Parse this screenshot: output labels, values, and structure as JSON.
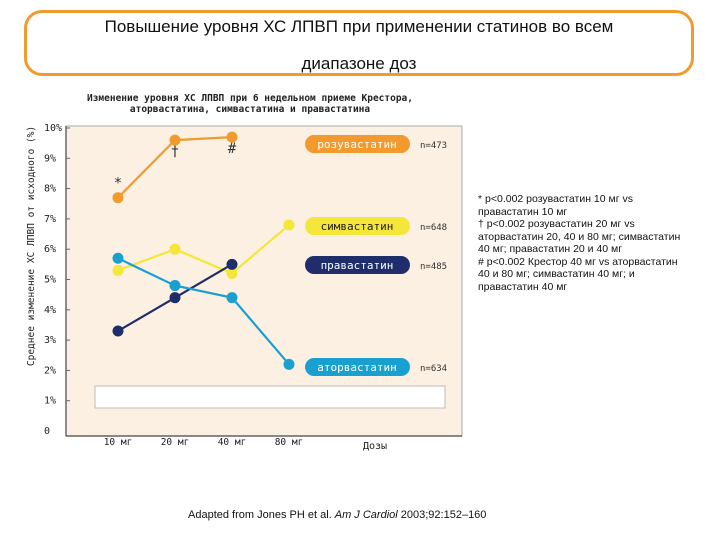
{
  "slide_title": {
    "line1": "Повышение уровня ХС ЛПВП при применении статинов во всем",
    "line2": "диапазоне доз"
  },
  "chart_data": {
    "type": "line",
    "title_line1": "Изменение уровня ХС ЛПВП при 6 недельном приеме Крестора,",
    "title_line2": "аторвастатина, симвастатина и правастатина",
    "ylabel": "Среднее изменение ХС ЛПВП от исходного (%)",
    "xlabel": "Дозы",
    "categories": [
      "10 мг",
      "20 мг",
      "40 мг",
      "80 мг"
    ],
    "y_ticks": [
      "0",
      "1%",
      "2%",
      "3%",
      "4%",
      "5%",
      "6%",
      "7%",
      "8%",
      "9%",
      "10%"
    ],
    "ylim": [
      0,
      10
    ],
    "grid": false,
    "series": [
      {
        "name": "розувастатин",
        "n": "n=473",
        "color": "#f29a2e",
        "label_bg": "#f29a2e",
        "label_fg": "#ffffff",
        "values": [
          7.7,
          9.6,
          9.7,
          null
        ]
      },
      {
        "name": "симвастатин",
        "n": "n=648",
        "color": "#f5e63a",
        "label_bg": "#f5e63a",
        "label_fg": "#1a1a1a",
        "values": [
          5.3,
          6.0,
          5.2,
          6.8
        ]
      },
      {
        "name": "правастатин",
        "n": "n=485",
        "color": "#1f2d6b",
        "label_bg": "#1f2d6b",
        "label_fg": "#ffffff",
        "values": [
          3.3,
          4.4,
          5.5,
          null
        ]
      },
      {
        "name": "аторвастатин",
        "n": "n=634",
        "color": "#1aa0d0",
        "label_bg": "#1aa0d0",
        "label_fg": "#ffffff",
        "values": [
          5.7,
          4.8,
          4.4,
          2.2
        ]
      }
    ],
    "annotations": [
      {
        "text": "*",
        "series": "розувастатин",
        "category": "10 мг"
      },
      {
        "text": "†",
        "series": "розувастатин",
        "category": "20 мг"
      },
      {
        "text": "#",
        "series": "розувастатин",
        "category": "40 мг"
      }
    ]
  },
  "footnotes": [
    "* p<0.002 розувастатин 10 мг vs",
    "правастатин 10 мг",
    "† p<0.002 розувастатин 20 мг vs",
    "аторвастатин 20, 40 и 80 мг; симвастатин",
    "40 мг; правастатин 20 и 40 мг",
    "# p<0.002 Крестор 40 мг vs аторвастатин",
    "40 и 80 мг;  симвастатин 40 мг; и",
    "правастатин 40 мг"
  ],
  "citation": {
    "prefix": "Adapted from Jones PH et al. ",
    "journal": "Am J Cardiol",
    "suffix": " 2003;92:152–160"
  }
}
